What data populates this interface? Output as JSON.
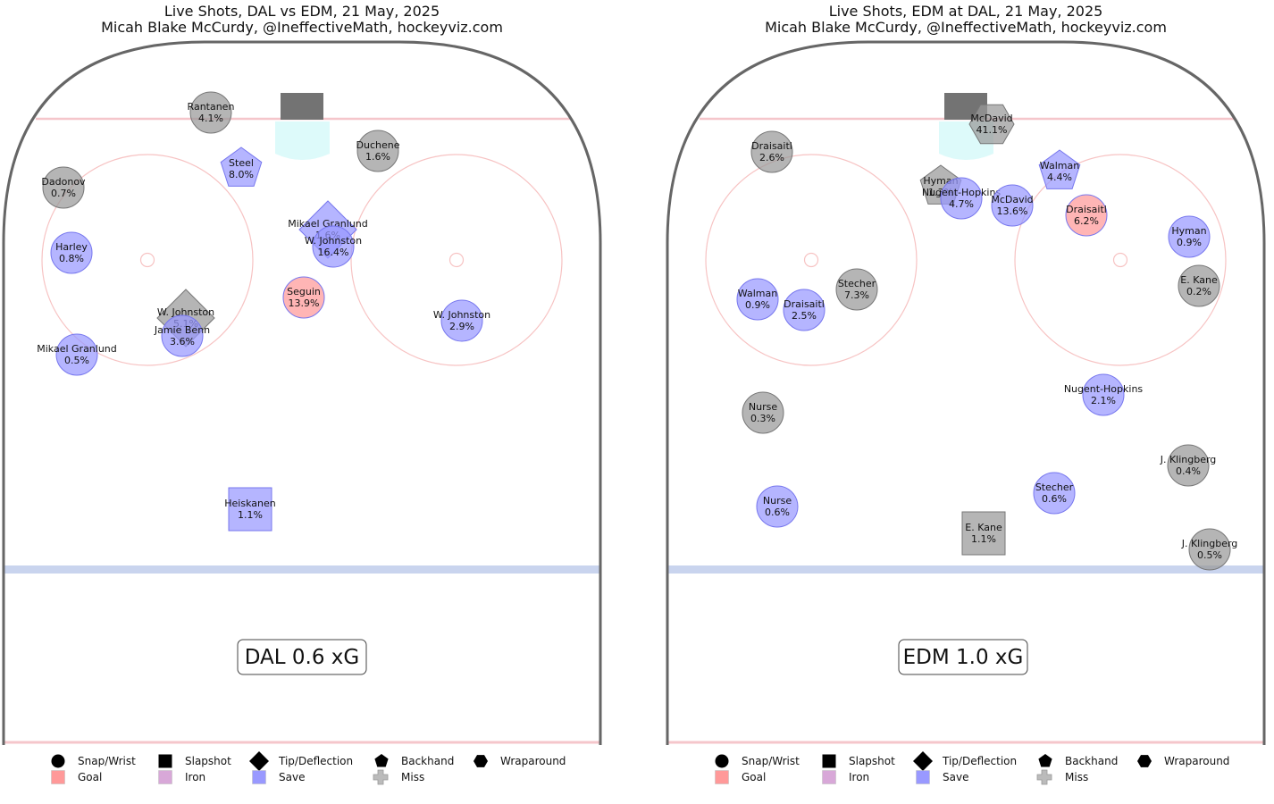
{
  "chart_data": [
    {
      "type": "scatter",
      "title": "Live Shots, DAL vs EDM, 21 May, 2025",
      "subtitle": "Micah Blake McCurdy, @IneffectiveMath, hockeyviz.com",
      "team_xg": "DAL 0.6 xG",
      "shots": [
        {
          "player": "Rantanen",
          "xg": "4.1%",
          "shot_type": "Snap/Wrist",
          "result": "Miss"
        },
        {
          "player": "Duchene",
          "xg": "1.6%",
          "shot_type": "Snap/Wrist",
          "result": "Miss"
        },
        {
          "player": "Steel",
          "xg": "8.0%",
          "shot_type": "Backhand",
          "result": "Save"
        },
        {
          "player": "Dadonov",
          "xg": "0.7%",
          "shot_type": "Snap/Wrist",
          "result": "Miss"
        },
        {
          "player": "Mikael Granlund",
          "xg": "1.6%",
          "shot_type": "Tip/Deflection",
          "result": "Save"
        },
        {
          "player": "W. Johnston",
          "xg": "16.4%",
          "shot_type": "Snap/Wrist",
          "result": "Save"
        },
        {
          "player": "Harley",
          "xg": "0.8%",
          "shot_type": "Snap/Wrist",
          "result": "Save"
        },
        {
          "player": "Seguin",
          "xg": "13.9%",
          "shot_type": "Snap/Wrist",
          "result": "Goal"
        },
        {
          "player": "W. Johnston",
          "xg": "5.1%",
          "shot_type": "Tip/Deflection",
          "result": "Miss"
        },
        {
          "player": "Jamie Benn",
          "xg": "3.6%",
          "shot_type": "Snap/Wrist",
          "result": "Save"
        },
        {
          "player": "W. Johnston",
          "xg": "2.9%",
          "shot_type": "Snap/Wrist",
          "result": "Save"
        },
        {
          "player": "Mikael Granlund",
          "xg": "0.5%",
          "shot_type": "Snap/Wrist",
          "result": "Save"
        },
        {
          "player": "Heiskanen",
          "xg": "1.1%",
          "shot_type": "Slapshot",
          "result": "Save"
        }
      ]
    },
    {
      "type": "scatter",
      "title": "Live Shots, EDM at DAL, 21 May, 2025",
      "subtitle": "Micah Blake McCurdy, @IneffectiveMath, hockeyviz.com",
      "team_xg": "EDM 1.0 xG",
      "shots": [
        {
          "player": "McDavid",
          "xg": "41.1%",
          "shot_type": "Wraparound",
          "result": "Miss"
        },
        {
          "player": "Draisaitl",
          "xg": "2.6%",
          "shot_type": "Snap/Wrist",
          "result": "Miss"
        },
        {
          "player": "Walman",
          "xg": "4.4%",
          "shot_type": "Backhand",
          "result": "Save"
        },
        {
          "player": "Hyman",
          "xg": "1.3%",
          "shot_type": "Backhand",
          "result": "Miss"
        },
        {
          "player": "Nugent-Hopkins",
          "xg": "4.7%",
          "shot_type": "Snap/Wrist",
          "result": "Save"
        },
        {
          "player": "McDavid",
          "xg": "13.6%",
          "shot_type": "Snap/Wrist",
          "result": "Save"
        },
        {
          "player": "Draisaitl",
          "xg": "6.2%",
          "shot_type": "Snap/Wrist",
          "result": "Goal"
        },
        {
          "player": "Hyman",
          "xg": "0.9%",
          "shot_type": "Snap/Wrist",
          "result": "Save"
        },
        {
          "player": "E. Kane",
          "xg": "0.2%",
          "shot_type": "Snap/Wrist",
          "result": "Miss"
        },
        {
          "player": "Stecher",
          "xg": "7.3%",
          "shot_type": "Snap/Wrist",
          "result": "Miss"
        },
        {
          "player": "Walman",
          "xg": "0.9%",
          "shot_type": "Snap/Wrist",
          "result": "Save"
        },
        {
          "player": "Draisaitl",
          "xg": "2.5%",
          "shot_type": "Snap/Wrist",
          "result": "Save"
        },
        {
          "player": "Nugent-Hopkins",
          "xg": "2.1%",
          "shot_type": "Snap/Wrist",
          "result": "Save"
        },
        {
          "player": "Nurse",
          "xg": "0.3%",
          "shot_type": "Snap/Wrist",
          "result": "Miss"
        },
        {
          "player": "J. Klingberg",
          "xg": "0.4%",
          "shot_type": "Snap/Wrist",
          "result": "Miss"
        },
        {
          "player": "Stecher",
          "xg": "0.6%",
          "shot_type": "Snap/Wrist",
          "result": "Save"
        },
        {
          "player": "Nurse",
          "xg": "0.6%",
          "shot_type": "Snap/Wrist",
          "result": "Save"
        },
        {
          "player": "E. Kane",
          "xg": "1.1%",
          "shot_type": "Slapshot",
          "result": "Miss"
        },
        {
          "player": "J. Klingberg",
          "xg": "0.5%",
          "shot_type": "Snap/Wrist",
          "result": "Miss"
        }
      ]
    }
  ],
  "legend": {
    "shapes": [
      {
        "label": "Snap/Wrist",
        "icon": "circle"
      },
      {
        "label": "Slapshot",
        "icon": "square"
      },
      {
        "label": "Tip/Deflection",
        "icon": "diamond"
      },
      {
        "label": "Backhand",
        "icon": "pentagon"
      },
      {
        "label": "Wraparound",
        "icon": "hexagon"
      }
    ],
    "results": [
      {
        "label": "Goal",
        "icon": "square",
        "color": "#ff9999"
      },
      {
        "label": "Iron",
        "icon": "square",
        "color": "#d8a8d8"
      },
      {
        "label": "Save",
        "icon": "square",
        "color": "#9999ff"
      },
      {
        "label": "Miss",
        "icon": "plus",
        "color": "#aaaaaa"
      }
    ]
  },
  "colors": {
    "goal": "#ff9999",
    "save": "#9999ff",
    "miss": "#999999",
    "rink_board": "#666666",
    "goal_line": "#f5c6cb",
    "blue_line": "#c9d4ee",
    "crease": "#ddfafa",
    "faceoff_circle": "#f7c3c3"
  }
}
